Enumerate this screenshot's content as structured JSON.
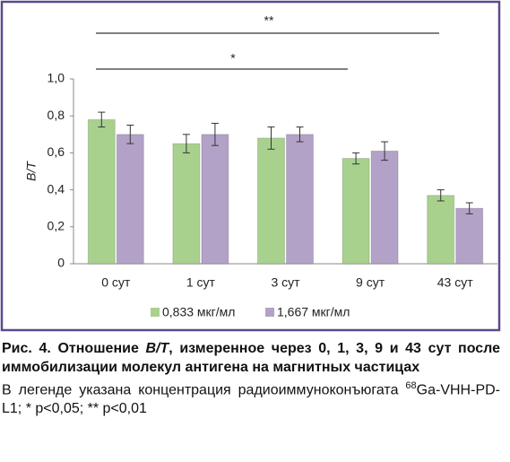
{
  "chart_data": {
    "type": "bar",
    "y_label": "B/T",
    "categories": [
      "0 сут",
      "1 сут",
      "3 сут",
      "9 сут",
      "43 сут"
    ],
    "series": [
      {
        "name": "0,833 мкг/мл",
        "color": "#a9d18e",
        "values": [
          0.78,
          0.65,
          0.68,
          0.57,
          0.37
        ],
        "errors": [
          0.04,
          0.05,
          0.06,
          0.03,
          0.03
        ]
      },
      {
        "name": "1,667 мкг/мл",
        "color": "#b3a2c7",
        "values": [
          0.7,
          0.7,
          0.7,
          0.61,
          0.3
        ],
        "errors": [
          0.05,
          0.06,
          0.04,
          0.05,
          0.03
        ]
      }
    ],
    "ylim": [
      0,
      1
    ],
    "yticks": [
      0,
      {
        "value": 0.2,
        "label": "0,2"
      },
      {
        "value": 0.4,
        "label": "0,4"
      },
      {
        "value": 0.6,
        "label": "0,6"
      },
      {
        "value": 0.8,
        "label": "0,8"
      },
      {
        "value": 1,
        "label": "1,0"
      }
    ],
    "annotations": [
      "*",
      "**"
    ]
  },
  "caption": {
    "label": "Рис. 4.",
    "title_before": "Отношение ",
    "title_italic": "B/T",
    "title_after": ", измеренное через 0, 1, 3, 9 и 43 сут после иммобилизации молекул антигена на магнитных частицах",
    "note": "В легенде указана концентрация радиоиммуноконъюгата",
    "note_sup": "68",
    "note_rest": "Ga-VHH-PD-L1; * p<0,05; ** p<0,01"
  }
}
